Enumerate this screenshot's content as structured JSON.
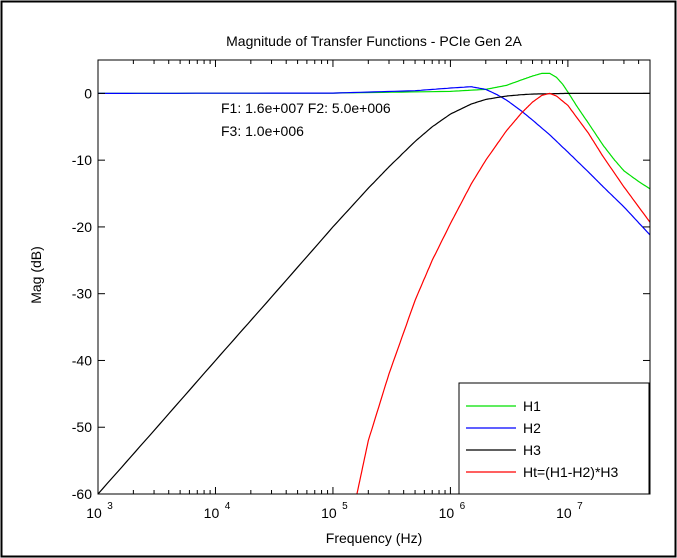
{
  "chart_data": {
    "type": "line",
    "title": "Magnitude of Transfer Functions - PCIe Gen 2A",
    "xlabel": "Frequency (Hz)",
    "ylabel": "Mag (dB)",
    "xscale": "log",
    "xlim": [
      1000,
      50000000
    ],
    "ylim": [
      -60,
      5
    ],
    "grid": false,
    "legend_placement": "bottom-right",
    "x_ticks": [
      {
        "base": "10",
        "exp": "3"
      },
      {
        "base": "10",
        "exp": "4"
      },
      {
        "base": "10",
        "exp": "5"
      },
      {
        "base": "10",
        "exp": "6"
      },
      {
        "base": "10",
        "exp": "7"
      }
    ],
    "y_ticks": [
      "0",
      "-10",
      "-20",
      "-30",
      "-40",
      "-50",
      "-60"
    ],
    "annotations": [
      "F1: 1.6e+007 F2: 5.0e+006",
      "F3: 1.0e+006"
    ],
    "series": [
      {
        "name": "H1",
        "color": "#00e000",
        "x": [
          1000,
          100000,
          1000000,
          2000000,
          3000000,
          4000000,
          5000000,
          6000000,
          7000000,
          8000000,
          9000000,
          10000000,
          12000000,
          15000000,
          20000000,
          25000000,
          30000000,
          40000000,
          50000000
        ],
        "y": [
          0,
          0.05,
          0.3,
          0.6,
          1.2,
          2.0,
          2.6,
          3.0,
          3.0,
          2.4,
          1.4,
          0.2,
          -2.0,
          -4.5,
          -7.8,
          -10.0,
          -11.6,
          -13.2,
          -14.3
        ]
      },
      {
        "name": "H2",
        "color": "#0000ff",
        "x": [
          1000,
          100000,
          500000,
          1000000,
          1500000,
          2000000,
          2500000,
          3000000,
          4000000,
          5000000,
          7000000,
          10000000,
          15000000,
          20000000,
          30000000,
          50000000
        ],
        "y": [
          0,
          0.05,
          0.4,
          0.8,
          1.0,
          0.6,
          -0.2,
          -1.0,
          -2.6,
          -4.0,
          -6.2,
          -8.8,
          -11.8,
          -14.0,
          -17.0,
          -21.2
        ]
      },
      {
        "name": "H3",
        "color": "#000000",
        "x": [
          1000,
          3000,
          10000,
          30000,
          100000,
          200000,
          300000,
          500000,
          700000,
          1000000,
          1500000,
          2000000,
          3000000,
          4000000,
          5000000,
          7000000,
          10000000,
          20000000,
          50000000
        ],
        "y": [
          -60,
          -50.5,
          -40,
          -30.5,
          -20,
          -14.2,
          -11.0,
          -7.2,
          -5.0,
          -3.1,
          -1.6,
          -0.9,
          -0.4,
          -0.2,
          -0.1,
          -0.05,
          0,
          0,
          0
        ]
      },
      {
        "name": "Ht=(H1-H2)*H3",
        "color": "#ff0000",
        "x": [
          160000,
          200000,
          300000,
          500000,
          700000,
          1000000,
          1500000,
          2000000,
          3000000,
          4000000,
          5000000,
          6000000,
          7000000,
          8000000,
          10000000,
          15000000,
          20000000,
          30000000,
          50000000
        ],
        "y": [
          -60,
          -52,
          -42,
          -31,
          -25,
          -19.5,
          -13.6,
          -10.0,
          -5.6,
          -3.0,
          -1.3,
          -0.3,
          0,
          -0.4,
          -1.8,
          -6.0,
          -9.5,
          -14.0,
          -19.3
        ]
      }
    ]
  }
}
